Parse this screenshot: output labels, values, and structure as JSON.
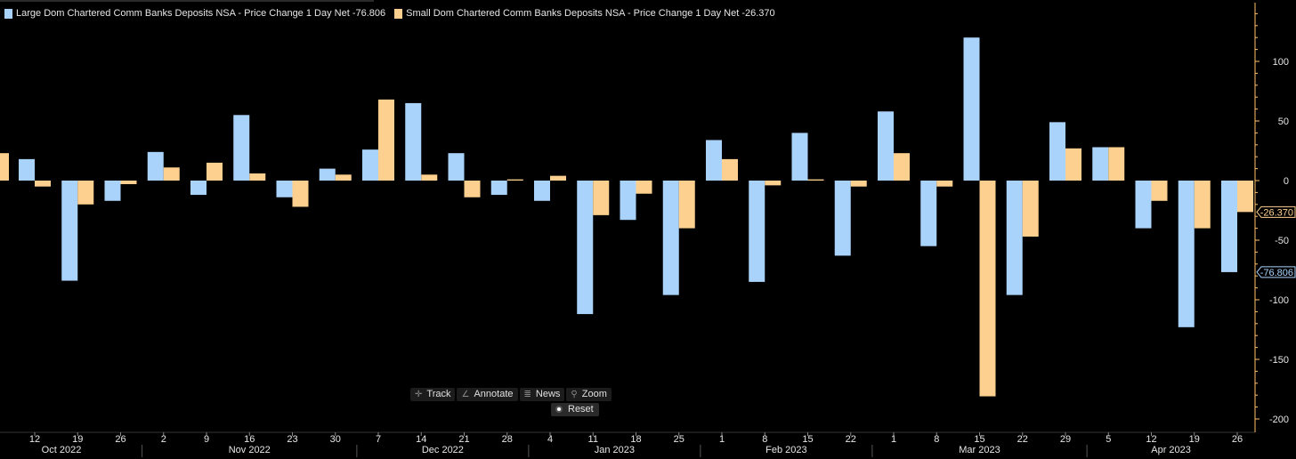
{
  "legend": [
    {
      "label": "Large Dom Chartered Comm Banks Deposits NSA - Price Change 1 Day Net -76.806",
      "color": "#a9d3fb"
    },
    {
      "label": "Small Dom Chartered Comm Banks Deposits NSA - Price Change 1 Day Net -26.370",
      "color": "#fdd08f"
    }
  ],
  "toolbar": {
    "track": "Track",
    "annotate": "Annotate",
    "news": "News",
    "zoom": "Zoom",
    "reset": "Reset"
  },
  "colors": {
    "background": "#000000",
    "large": "#a9d3fb",
    "small": "#fdd08f",
    "axis": "#ffc069",
    "text": "#e6e6e6",
    "divider": "#333333"
  },
  "chart_data": {
    "type": "bar",
    "title": "",
    "xlabel": "",
    "ylabel": "",
    "ylim": [
      -205,
      145
    ],
    "y_ticks": [
      100,
      50,
      0,
      -50,
      -100,
      -150,
      -200
    ],
    "categories": [
      "12",
      "19",
      "26",
      "2",
      "9",
      "16",
      "23",
      "30",
      "7",
      "14",
      "21",
      "28",
      "4",
      "11",
      "18",
      "25",
      "1",
      "8",
      "15",
      "22",
      "1",
      "8",
      "15",
      "22",
      "29",
      "5",
      "12",
      "19",
      "26"
    ],
    "months": [
      {
        "label": "Oct 2022"
      },
      {
        "label": "Nov 2022"
      },
      {
        "label": "Dec 2022"
      },
      {
        "label": "Jan 2023"
      },
      {
        "label": "Feb 2023"
      },
      {
        "label": "Mar 2023"
      },
      {
        "label": "Apr 2023"
      }
    ],
    "month_spans": [
      [
        0,
        2
      ],
      [
        3,
        7
      ],
      [
        8,
        11
      ],
      [
        12,
        15
      ],
      [
        16,
        19
      ],
      [
        20,
        24
      ],
      [
        25,
        28
      ]
    ],
    "series": [
      {
        "name": "Large Dom Chartered Comm Banks Deposits NSA - Price Change 1 Day Net",
        "values": [
          18,
          -84,
          -17,
          24,
          -12,
          55,
          -14,
          10,
          26,
          65,
          23,
          -12,
          -17,
          -112,
          -33,
          -96,
          34,
          -85,
          40,
          -63,
          58,
          -55,
          120,
          -96,
          49,
          28,
          -40,
          -123,
          -76.806
        ]
      },
      {
        "name": "Small Dom Chartered Comm Banks Deposits NSA - Price Change 1 Day Net",
        "values": [
          -5,
          -20,
          -3,
          11,
          15,
          6,
          -22,
          5,
          68,
          5,
          -14,
          1,
          4,
          -29,
          -11,
          -40,
          18,
          -4,
          1,
          -5,
          23,
          -5,
          -181,
          -47,
          27,
          28,
          -17,
          -40,
          -26.37
        ]
      }
    ],
    "partial_prev": {
      "small": 23
    },
    "last_value_labels": [
      {
        "series": "small",
        "label": "-26.370",
        "value": -26.37
      },
      {
        "series": "large",
        "label": "-76.806",
        "value": -76.806
      }
    ],
    "grid": false,
    "legend_position": "top-left"
  }
}
